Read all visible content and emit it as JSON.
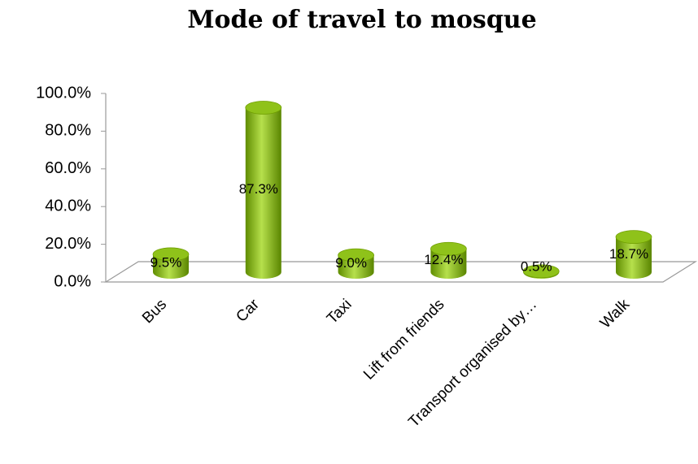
{
  "chart_data": {
    "type": "bar3d",
    "title": "Mode of travel to mosque",
    "categories": [
      "Bus",
      "Car",
      "Taxi",
      "Lift from friends",
      "Transport organised by…",
      "Walk"
    ],
    "values": [
      9.5,
      87.3,
      9.0,
      12.4,
      0.5,
      18.7
    ],
    "value_labels": [
      "9.5%",
      "87.3%",
      "9.0%",
      "12.4%",
      "0.5%",
      "18.7%"
    ],
    "color": "#7fb800",
    "ylim": [
      0,
      100
    ],
    "yticks": [
      {
        "value": 0,
        "label": "0.0%"
      },
      {
        "value": 20,
        "label": "20.0%"
      },
      {
        "value": 40,
        "label": "40.0%"
      },
      {
        "value": 60,
        "label": "60.0%"
      },
      {
        "value": 80,
        "label": "80.0%"
      },
      {
        "value": 100,
        "label": "100.0%"
      }
    ]
  }
}
